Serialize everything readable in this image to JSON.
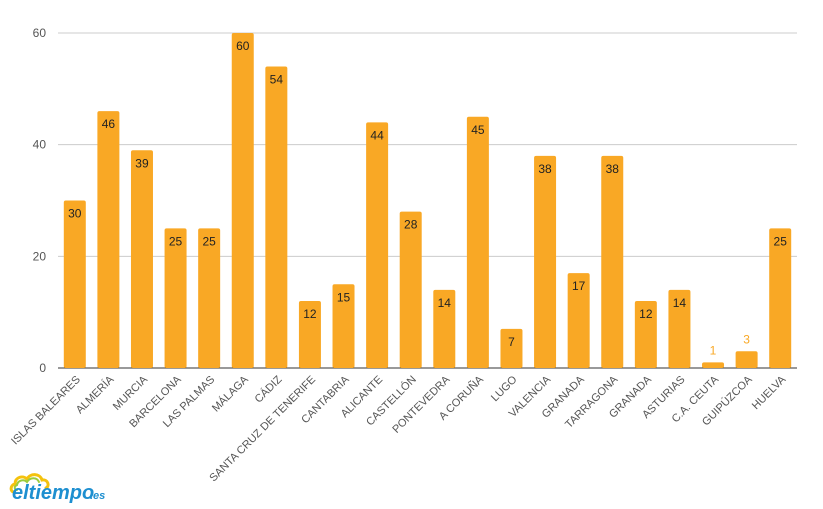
{
  "chart_data": {
    "type": "bar",
    "categories": [
      "ISLAS BALEARES",
      "ALMERÍA",
      "MURCIA",
      "BARCELONA",
      "LAS PALMAS",
      "MÁLAGA",
      "CÁDIZ",
      "SANTA CRUZ DE TENERIFE",
      "CANTABRIA",
      "ALICANTE",
      "CASTELLÓN",
      "PONTEVEDRA",
      "A CORUÑA",
      "LUGO",
      "VALENCIA",
      "GRANADA",
      "TARRAGONA",
      "GRANADA",
      "ASTURIAS",
      "C.A. CEUTA",
      "GUIPÚZCOA",
      "HUELVA"
    ],
    "values": [
      30,
      46,
      39,
      25,
      25,
      60,
      54,
      12,
      15,
      44,
      28,
      14,
      45,
      7,
      38,
      17,
      38,
      12,
      14,
      1,
      3,
      25
    ],
    "ylim": [
      0,
      60
    ],
    "yticks": [
      0,
      20,
      40,
      60
    ],
    "grid": true,
    "bar_color": "#f9a825",
    "label_color_inside": "#222222",
    "label_color_outside": "#f9a825"
  },
  "logo": {
    "text": "eltiempo",
    "tld": ".es",
    "brand_color": "#1d8fd0"
  }
}
